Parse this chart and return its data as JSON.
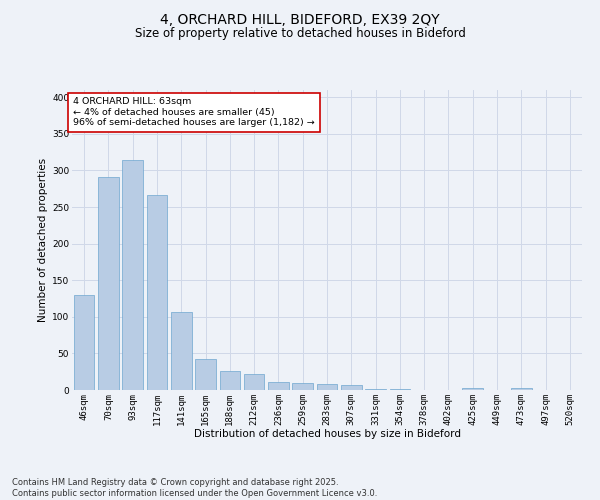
{
  "title1": "4, ORCHARD HILL, BIDEFORD, EX39 2QY",
  "title2": "Size of property relative to detached houses in Bideford",
  "xlabel": "Distribution of detached houses by size in Bideford",
  "ylabel": "Number of detached properties",
  "categories": [
    "46sqm",
    "70sqm",
    "93sqm",
    "117sqm",
    "141sqm",
    "165sqm",
    "188sqm",
    "212sqm",
    "236sqm",
    "259sqm",
    "283sqm",
    "307sqm",
    "331sqm",
    "354sqm",
    "378sqm",
    "402sqm",
    "425sqm",
    "449sqm",
    "473sqm",
    "497sqm",
    "520sqm"
  ],
  "values": [
    130,
    291,
    315,
    267,
    107,
    43,
    26,
    22,
    11,
    10,
    8,
    7,
    2,
    1,
    0,
    0,
    3,
    0,
    3,
    0,
    0
  ],
  "bar_color": "#b8cce4",
  "bar_edge_color": "#6ea6d0",
  "annotation_text": "4 ORCHARD HILL: 63sqm\n← 4% of detached houses are smaller (45)\n96% of semi-detached houses are larger (1,182) →",
  "annotation_box_color": "#ffffff",
  "annotation_box_edge": "#cc0000",
  "grid_color": "#d0d8e8",
  "bg_color": "#eef2f8",
  "footer": "Contains HM Land Registry data © Crown copyright and database right 2025.\nContains public sector information licensed under the Open Government Licence v3.0.",
  "ylim": [
    0,
    410
  ],
  "yticks": [
    0,
    50,
    100,
    150,
    200,
    250,
    300,
    350,
    400
  ],
  "title_fontsize": 10,
  "subtitle_fontsize": 8.5,
  "axis_label_fontsize": 7.5,
  "tick_fontsize": 6.5,
  "footer_fontsize": 6,
  "annot_fontsize": 6.8
}
